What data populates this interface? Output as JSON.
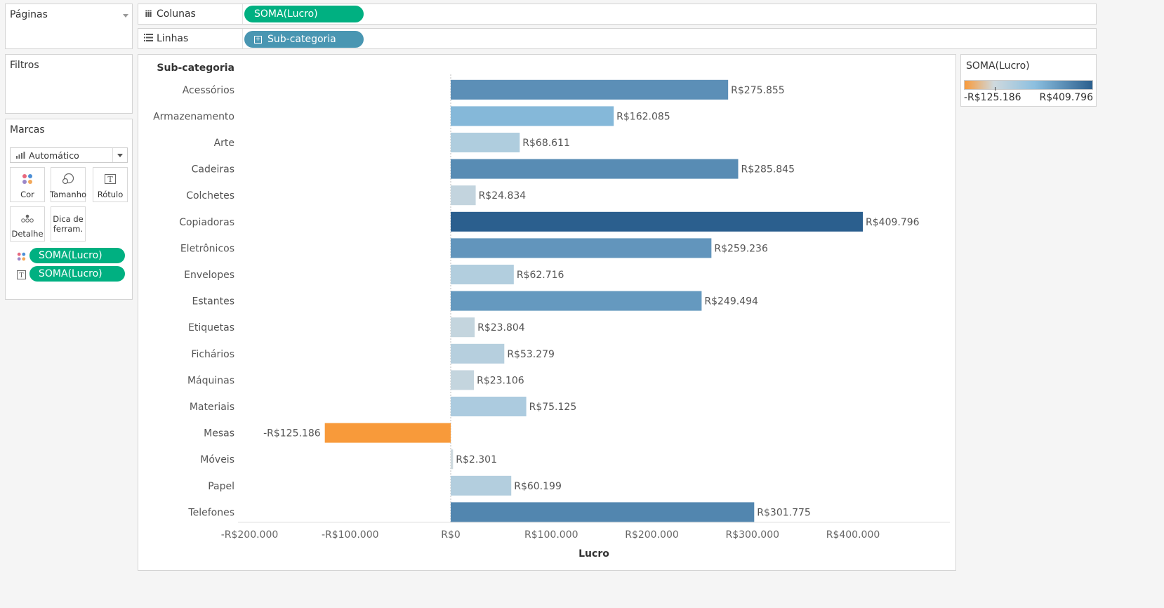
{
  "pages_panel": {
    "title": "Páginas"
  },
  "columns_shelf": {
    "label": "Colunas",
    "pill": "SOMA(Lucro)"
  },
  "rows_shelf": {
    "label": "Linhas",
    "pill": "Sub-categoria"
  },
  "filters_panel": {
    "title": "Filtros"
  },
  "marks_panel": {
    "title": "Marcas",
    "mark_type": "Automático",
    "buttons": {
      "color": "Cor",
      "size": "Tamanho",
      "label": "Rótulo",
      "detail": "Detalhe",
      "tooltip_line1": "Dica de",
      "tooltip_line2": "ferram."
    },
    "fields": [
      {
        "encoding": "color",
        "pill": "SOMA(Lucro)"
      },
      {
        "encoding": "label",
        "pill": "SOMA(Lucro)"
      }
    ]
  },
  "legend": {
    "title": "SOMA(Lucro)",
    "min_label": "-R$125.186",
    "max_label": "R$409.796",
    "colors": {
      "negative": "#f89a3a",
      "light": "#cfd9de",
      "mid": "#8cbfdf",
      "positive": "#2b5f8e"
    }
  },
  "chart_data": {
    "type": "bar",
    "orientation": "horizontal",
    "row_header": "Sub-categoria",
    "xlabel": "Lucro",
    "xlim": [
      -210000,
      475000
    ],
    "x_ticks": [
      -200000,
      -100000,
      0,
      100000,
      200000,
      300000,
      400000
    ],
    "x_tick_labels": [
      "-R$200.000",
      "-R$100.000",
      "R$0",
      "R$100.000",
      "R$200.000",
      "R$300.000",
      "R$400.000"
    ],
    "categories": [
      "Acessórios",
      "Armazenamento",
      "Arte",
      "Cadeiras",
      "Colchetes",
      "Copiadoras",
      "Eletrônicos",
      "Envelopes",
      "Estantes",
      "Etiquetas",
      "Fichários",
      "Máquinas",
      "Materiais",
      "Mesas",
      "Móveis",
      "Papel",
      "Telefones"
    ],
    "values": [
      275855,
      162085,
      68611,
      285845,
      24834,
      409796,
      259236,
      62716,
      249494,
      23804,
      53279,
      23106,
      75125,
      -125186,
      2301,
      60199,
      301775
    ],
    "value_labels": [
      "R$275.855",
      "R$162.085",
      "R$68.611",
      "R$285.845",
      "R$24.834",
      "R$409.796",
      "R$259.236",
      "R$62.716",
      "R$249.494",
      "R$23.804",
      "R$53.279",
      "R$23.106",
      "R$75.125",
      "-R$125.186",
      "R$2.301",
      "R$60.199",
      "R$301.775"
    ],
    "color_range": [
      -125186,
      409796
    ]
  }
}
